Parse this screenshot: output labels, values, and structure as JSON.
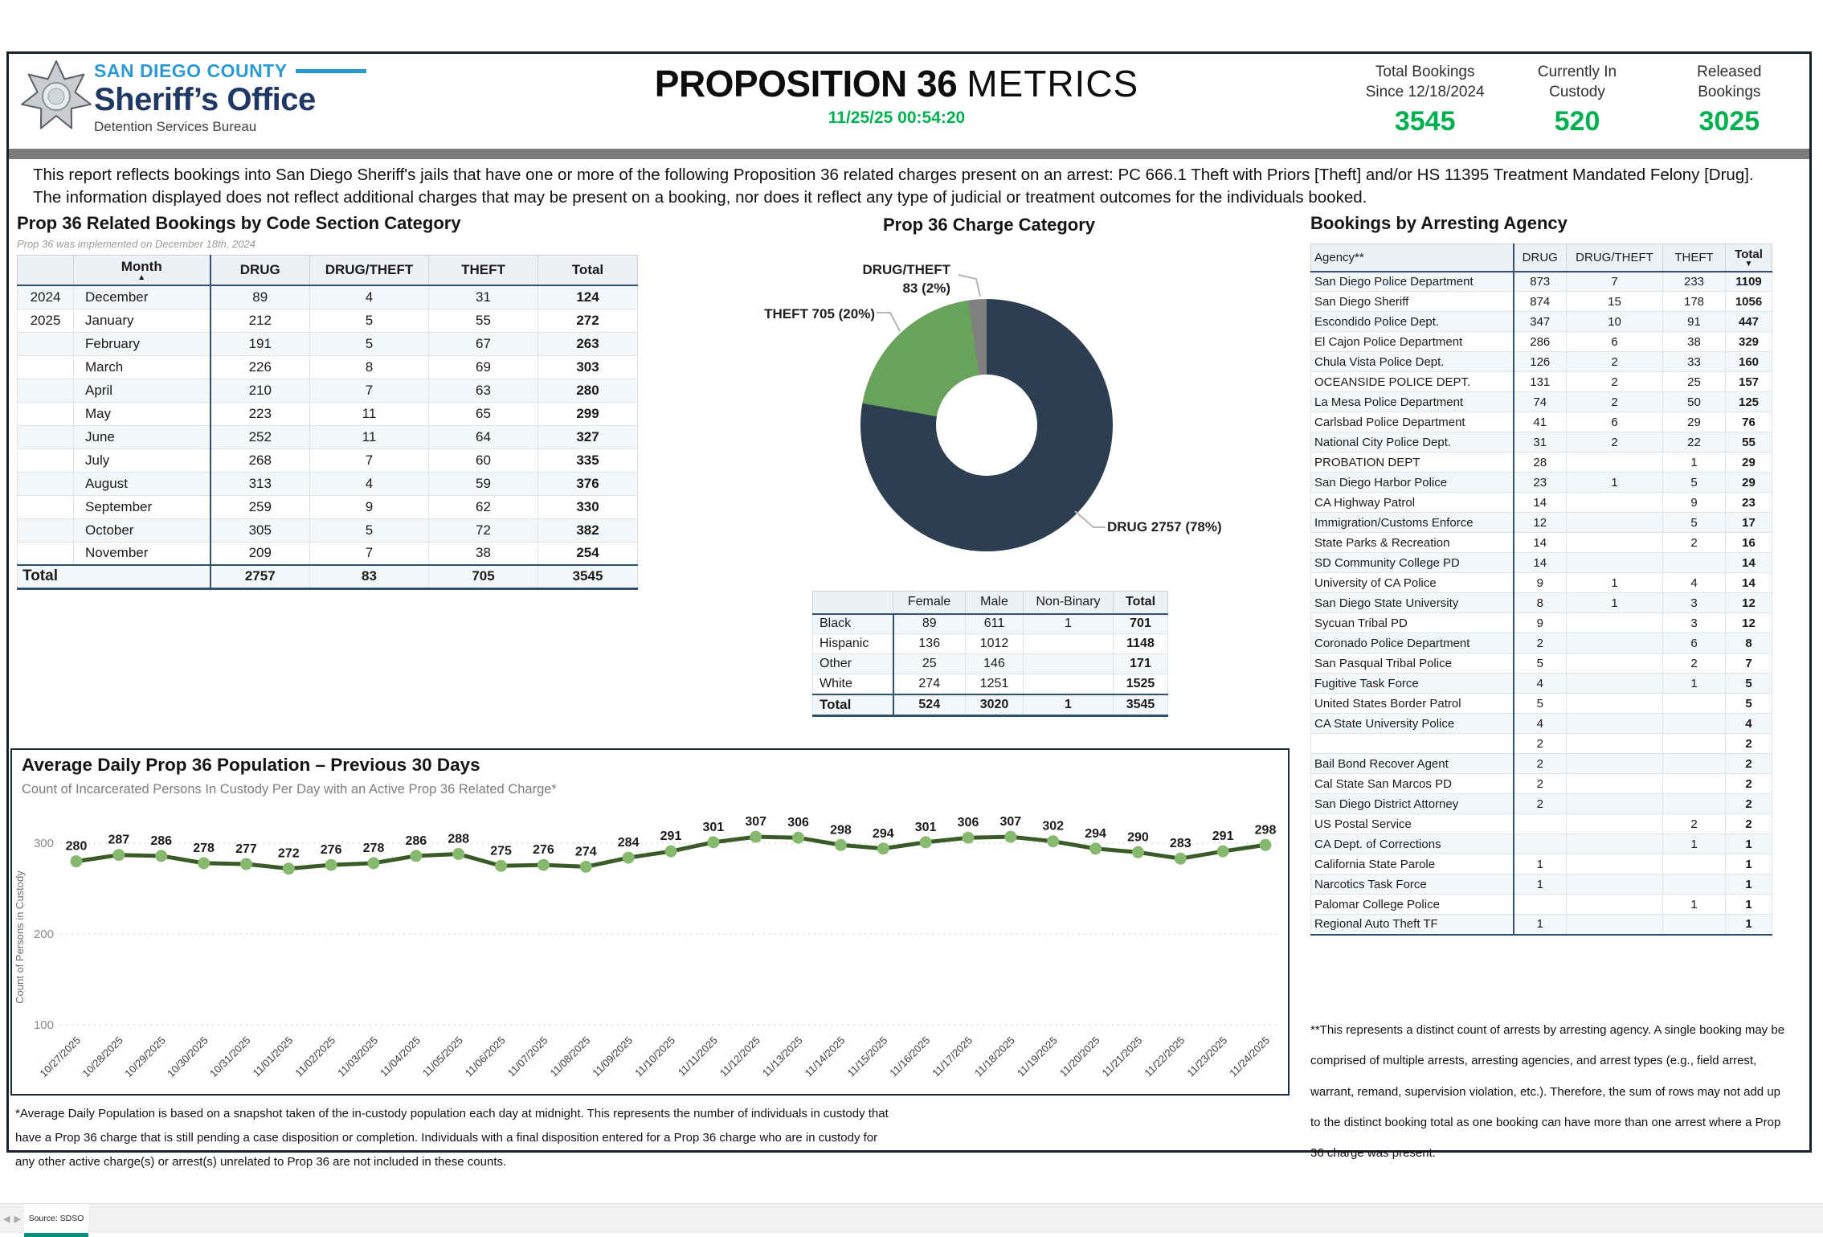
{
  "header": {
    "county": "SAN DIEGO COUNTY",
    "office": "Sheriff’s Office",
    "bureau": "Detention Services Bureau",
    "title_bold": "PROPOSITION 36",
    "title_light": "METRICS",
    "timestamp": "11/25/25 00:54:20",
    "stats": [
      {
        "line1": "Total Bookings",
        "line2": "Since 12/18/2024",
        "value": "3545"
      },
      {
        "line1": "Currently In",
        "line2": "Custody",
        "value": "520"
      },
      {
        "line1": "Released",
        "line2": "Bookings",
        "value": "3025"
      }
    ],
    "accent_green": "#00b050",
    "county_blue": "#2b9ad3",
    "office_navy": "#203864"
  },
  "description": "This report reflects bookings into San Diego Sheriff's jails that have one or more of the following Proposition 36 related charges present on an arrest: PC 666.1 Theft with Priors [Theft] and/or HS 11395 Treatment Mandated Felony [Drug]. The information displayed does not reflect additional charges that may be present on a booking, nor does it reflect any type of judicial or treatment outcomes for the individuals booked.",
  "monthly_table": {
    "title": "Prop 36 Related Bookings by Code Section Category",
    "subtitle": "Prop 36 was implemented on December 18th, 2024",
    "columns": [
      "",
      "Month",
      "DRUG",
      "DRUG/THEFT",
      "THEFT",
      "Total"
    ],
    "sort_column": "Month",
    "rows": [
      {
        "year": "2024",
        "month": "December",
        "drug": "89",
        "drug_theft": "4",
        "theft": "31",
        "total": "124"
      },
      {
        "year": "2025",
        "month": "January",
        "drug": "212",
        "drug_theft": "5",
        "theft": "55",
        "total": "272"
      },
      {
        "year": "",
        "month": "February",
        "drug": "191",
        "drug_theft": "5",
        "theft": "67",
        "total": "263"
      },
      {
        "year": "",
        "month": "March",
        "drug": "226",
        "drug_theft": "8",
        "theft": "69",
        "total": "303"
      },
      {
        "year": "",
        "month": "April",
        "drug": "210",
        "drug_theft": "7",
        "theft": "63",
        "total": "280"
      },
      {
        "year": "",
        "month": "May",
        "drug": "223",
        "drug_theft": "11",
        "theft": "65",
        "total": "299"
      },
      {
        "year": "",
        "month": "June",
        "drug": "252",
        "drug_theft": "11",
        "theft": "64",
        "total": "327"
      },
      {
        "year": "",
        "month": "July",
        "drug": "268",
        "drug_theft": "7",
        "theft": "60",
        "total": "335"
      },
      {
        "year": "",
        "month": "August",
        "drug": "313",
        "drug_theft": "4",
        "theft": "59",
        "total": "376"
      },
      {
        "year": "",
        "month": "September",
        "drug": "259",
        "drug_theft": "9",
        "theft": "62",
        "total": "330"
      },
      {
        "year": "",
        "month": "October",
        "drug": "305",
        "drug_theft": "5",
        "theft": "72",
        "total": "382"
      },
      {
        "year": "",
        "month": "November",
        "drug": "209",
        "drug_theft": "7",
        "theft": "38",
        "total": "254"
      }
    ],
    "total_row": {
      "label": "Total",
      "drug": "2757",
      "drug_theft": "83",
      "theft": "705",
      "total": "3545"
    }
  },
  "demographics": {
    "columns": [
      "",
      "Female",
      "Male",
      "Non-Binary",
      "Total"
    ],
    "rows": [
      [
        "Black",
        "89",
        "611",
        "1",
        "701"
      ],
      [
        "Hispanic",
        "136",
        "1012",
        "",
        "1148"
      ],
      [
        "Other",
        "25",
        "146",
        "",
        "171"
      ],
      [
        "White",
        "274",
        "1251",
        "",
        "1525"
      ]
    ],
    "total_row": [
      "Total",
      "524",
      "3020",
      "1",
      "3545"
    ]
  },
  "agency_table": {
    "title": "Bookings by Arresting Agency",
    "columns": [
      "Agency**",
      "DRUG",
      "DRUG/THEFT",
      "THEFT",
      "Total"
    ],
    "sort_column": "Total",
    "rows": [
      [
        "San Diego Police Department",
        "873",
        "7",
        "233",
        "1109"
      ],
      [
        "San Diego Sheriff",
        "874",
        "15",
        "178",
        "1056"
      ],
      [
        "Escondido Police Dept.",
        "347",
        "10",
        "91",
        "447"
      ],
      [
        "El Cajon Police Department",
        "286",
        "6",
        "38",
        "329"
      ],
      [
        "Chula Vista Police Dept.",
        "126",
        "2",
        "33",
        "160"
      ],
      [
        "OCEANSIDE POLICE DEPT.",
        "131",
        "2",
        "25",
        "157"
      ],
      [
        "La Mesa Police Department",
        "74",
        "2",
        "50",
        "125"
      ],
      [
        "Carlsbad Police Department",
        "41",
        "6",
        "29",
        "76"
      ],
      [
        "National City Police Dept.",
        "31",
        "2",
        "22",
        "55"
      ],
      [
        "PROBATION DEPT",
        "28",
        "",
        "1",
        "29"
      ],
      [
        "San Diego Harbor Police",
        "23",
        "1",
        "5",
        "29"
      ],
      [
        "CA Highway Patrol",
        "14",
        "",
        "9",
        "23"
      ],
      [
        "Immigration/Customs Enforce",
        "12",
        "",
        "5",
        "17"
      ],
      [
        "State Parks & Recreation",
        "14",
        "",
        "2",
        "16"
      ],
      [
        "SD Community College PD",
        "14",
        "",
        "",
        "14"
      ],
      [
        "University of CA Police",
        "9",
        "1",
        "4",
        "14"
      ],
      [
        "San Diego State University",
        "8",
        "1",
        "3",
        "12"
      ],
      [
        "Sycuan Tribal PD",
        "9",
        "",
        "3",
        "12"
      ],
      [
        "Coronado Police Department",
        "2",
        "",
        "6",
        "8"
      ],
      [
        "San Pasqual Tribal Police",
        "5",
        "",
        "2",
        "7"
      ],
      [
        "Fugitive Task Force",
        "4",
        "",
        "1",
        "5"
      ],
      [
        "United States Border Patrol",
        "5",
        "",
        "",
        "5"
      ],
      [
        "CA State University Police",
        "4",
        "",
        "",
        "4"
      ],
      [
        "",
        "2",
        "",
        "",
        "2"
      ],
      [
        "Bail Bond Recover Agent",
        "2",
        "",
        "",
        "2"
      ],
      [
        "Cal State San Marcos PD",
        "2",
        "",
        "",
        "2"
      ],
      [
        "San Diego District Attorney",
        "2",
        "",
        "",
        "2"
      ],
      [
        "US Postal Service",
        "",
        "",
        "2",
        "2"
      ],
      [
        "CA Dept. of Corrections",
        "",
        "",
        "1",
        "1"
      ],
      [
        "California State Parole",
        "1",
        "",
        "",
        "1"
      ],
      [
        "Narcotics Task Force",
        "1",
        "",
        "",
        "1"
      ],
      [
        "Palomar College Police",
        "",
        "",
        "1",
        "1"
      ],
      [
        "Regional Auto Theft TF",
        "1",
        "",
        "",
        "1"
      ]
    ]
  },
  "chart_data": [
    {
      "type": "pie",
      "title": "Prop 36 Charge Category",
      "total": 3545,
      "hole_ratio": 0.4,
      "slices": [
        {
          "label": "DRUG",
          "value": 2757,
          "pct": 78,
          "color": "#2c3e50"
        },
        {
          "label": "THEFT",
          "value": 705,
          "pct": 20,
          "color": "#69a35b"
        },
        {
          "label": "DRUG/THEFT",
          "value": 83,
          "pct": 2,
          "color": "#7f7f7f"
        }
      ]
    },
    {
      "type": "line",
      "title": "Average Daily Prop 36 Population – Previous 30 Days",
      "subtitle": "Count of Incarcerated Persons In Custody Per Day with an Active Prop 36 Related Charge*",
      "ylabel": "Count of Persons in Custody",
      "yticks": [
        300,
        200,
        100
      ],
      "ylim": [
        100,
        310
      ],
      "grid": "dotted-horizontal",
      "line_color": "#3a5a28",
      "marker_color": "#86b96d",
      "x": [
        "10/27/2025",
        "10/28/2025",
        "10/29/2025",
        "10/30/2025",
        "10/31/2025",
        "11/01/2025",
        "11/02/2025",
        "11/03/2025",
        "11/04/2025",
        "11/05/2025",
        "11/06/2025",
        "11/07/2025",
        "11/08/2025",
        "11/09/2025",
        "11/10/2025",
        "11/11/2025",
        "11/12/2025",
        "11/13/2025",
        "11/14/2025",
        "11/15/2025",
        "11/16/2025",
        "11/17/2025",
        "11/18/2025",
        "11/19/2025",
        "11/20/2025",
        "11/21/2025",
        "11/22/2025",
        "11/23/2025",
        "11/24/2025"
      ],
      "values": [
        280,
        287,
        286,
        278,
        277,
        272,
        276,
        278,
        286,
        288,
        275,
        276,
        274,
        284,
        291,
        301,
        307,
        306,
        298,
        294,
        301,
        306,
        307,
        302,
        294,
        290,
        283,
        291,
        298
      ]
    }
  ],
  "footnotes": {
    "population": "*Average Daily Population is based on a snapshot taken of the in-custody population each day at midnight. This represents the number of individuals in custody that have a Prop 36 charge that is still pending a case disposition or completion. Individuals with a final disposition entered for a Prop 36 charge who are in custody for any other active charge(s) or arrest(s) unrelated to Prop 36 are not included in these counts.",
    "agency": "**This represents a distinct count of arrests by arresting agency. A single booking may be comprised of multiple arrests, arresting agencies, and arrest types (e.g., field arrest, warrant, remand, supervision violation, etc.). Therefore, the sum of rows may not add up to the distinct booking total as one booking can have more than one arrest where a Prop 36 charge was present."
  },
  "footer": {
    "tab_label": "Source: SDSO"
  }
}
